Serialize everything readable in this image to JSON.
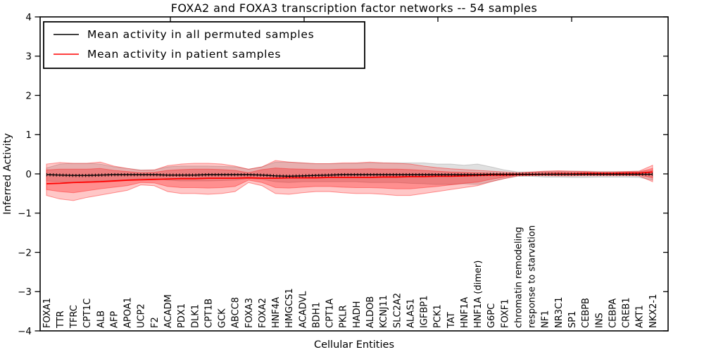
{
  "figure": {
    "title": "FOXA2 and FOXA3 transcription factor networks -- 54 samples",
    "xlabel": "Cellular Entities",
    "ylabel": "Inferred Activity"
  },
  "legend": {
    "items": [
      {
        "label": "Mean activity in all permuted samples",
        "color": "#000000"
      },
      {
        "label": "Mean activity in patient samples",
        "color": "#ff0000"
      }
    ]
  },
  "chart_data": {
    "type": "line",
    "title": "FOXA2 and FOXA3 transcription factor networks -- 54 samples",
    "xlabel": "Cellular Entities",
    "ylabel": "Inferred Activity",
    "ylim": [
      -4,
      4
    ],
    "yticks": [
      -4,
      -3,
      -2,
      -1,
      0,
      1,
      2,
      3,
      4
    ],
    "grid": false,
    "legend_position": "upper left",
    "categories": [
      "FOXA1",
      "TTR",
      "TFRC",
      "CPT1C",
      "ALB",
      "AFP",
      "APOA1",
      "UCP2",
      "F2",
      "ACADM",
      "PDX1",
      "DLK1",
      "CPT1B",
      "GCK",
      "ABCC8",
      "FOXA3",
      "FOXA2",
      "HNF4A",
      "HMGCS1",
      "ACADVL",
      "BDH1",
      "CPT1A",
      "PKLR",
      "HADH",
      "ALDOB",
      "KCNJ11",
      "SLC2A2",
      "ALAS1",
      "IGFBP1",
      "PCK1",
      "TAT",
      "HNF1A",
      "HNF1A (dimer)",
      "G6PC",
      "FOXF1",
      "chromatin remodeling",
      "response to starvation",
      "NF1",
      "NR3C1",
      "SP1",
      "CEBPB",
      "INS",
      "CEBPA",
      "CREB1",
      "AKT1",
      "NKX2-1"
    ],
    "series": [
      {
        "name": "Mean activity in all permuted samples",
        "color": "#000000",
        "values": [
          -0.02,
          -0.03,
          -0.04,
          -0.04,
          -0.03,
          -0.02,
          -0.02,
          -0.02,
          -0.02,
          -0.03,
          -0.03,
          -0.03,
          -0.02,
          -0.02,
          -0.02,
          -0.02,
          -0.03,
          -0.05,
          -0.06,
          -0.05,
          -0.04,
          -0.03,
          -0.02,
          -0.02,
          -0.02,
          -0.02,
          -0.02,
          -0.02,
          -0.02,
          -0.02,
          -0.02,
          -0.02,
          -0.02,
          -0.01,
          -0.01,
          -0.01,
          -0.01,
          -0.01,
          -0.01,
          -0.01,
          -0.01,
          -0.01,
          -0.01,
          -0.01,
          -0.01,
          -0.01
        ]
      },
      {
        "name": "Mean activity in patient samples",
        "color": "#ff0000",
        "values": [
          -0.25,
          -0.24,
          -0.22,
          -0.21,
          -0.2,
          -0.18,
          -0.16,
          -0.15,
          -0.14,
          -0.13,
          -0.12,
          -0.12,
          -0.11,
          -0.11,
          -0.11,
          -0.1,
          -0.11,
          -0.11,
          -0.1,
          -0.1,
          -0.1,
          -0.09,
          -0.09,
          -0.09,
          -0.09,
          -0.08,
          -0.08,
          -0.07,
          -0.07,
          -0.06,
          -0.06,
          -0.05,
          -0.04,
          -0.03,
          -0.03,
          -0.02,
          -0.02,
          -0.01,
          0.0,
          0.0,
          0.01,
          0.01,
          0.01,
          0.02,
          0.02,
          0.05
        ]
      }
    ],
    "bands": [
      {
        "name": "permuted samples range",
        "color": "rgba(0,0,0,0.12)",
        "edge": "rgba(0,0,0,0.16)",
        "upper": [
          0.15,
          0.25,
          0.27,
          0.27,
          0.25,
          0.18,
          0.14,
          0.1,
          0.1,
          0.18,
          0.2,
          0.2,
          0.2,
          0.19,
          0.18,
          0.12,
          0.18,
          0.3,
          0.3,
          0.28,
          0.26,
          0.26,
          0.26,
          0.27,
          0.28,
          0.28,
          0.28,
          0.28,
          0.28,
          0.25,
          0.25,
          0.22,
          0.25,
          0.18,
          0.1,
          0.05,
          0.05,
          0.06,
          0.06,
          0.07,
          0.07,
          0.06,
          0.06,
          0.06,
          0.07,
          0.08
        ],
        "lower": [
          -0.18,
          -0.2,
          -0.22,
          -0.2,
          -0.18,
          -0.16,
          -0.15,
          -0.12,
          -0.12,
          -0.16,
          -0.18,
          -0.18,
          -0.18,
          -0.17,
          -0.16,
          -0.12,
          -0.14,
          -0.2,
          -0.22,
          -0.2,
          -0.2,
          -0.2,
          -0.2,
          -0.2,
          -0.22,
          -0.22,
          -0.22,
          -0.24,
          -0.25,
          -0.27,
          -0.27,
          -0.25,
          -0.27,
          -0.2,
          -0.12,
          -0.06,
          -0.06,
          -0.08,
          -0.08,
          -0.09,
          -0.09,
          -0.08,
          -0.08,
          -0.08,
          -0.09,
          -0.16
        ]
      },
      {
        "name": "patient samples outer range",
        "color": "rgba(255,0,0,0.22)",
        "edge": "rgba(255,0,0,0.40)",
        "upper": [
          0.25,
          0.29,
          0.27,
          0.27,
          0.3,
          0.2,
          0.14,
          0.09,
          0.1,
          0.21,
          0.25,
          0.27,
          0.27,
          0.25,
          0.2,
          0.12,
          0.18,
          0.34,
          0.3,
          0.28,
          0.26,
          0.26,
          0.28,
          0.28,
          0.3,
          0.28,
          0.27,
          0.25,
          0.2,
          0.16,
          0.13,
          0.11,
          0.09,
          0.07,
          0.05,
          0.03,
          0.05,
          0.07,
          0.08,
          0.07,
          0.06,
          0.05,
          0.05,
          0.06,
          0.07,
          0.22
        ],
        "lower": [
          -0.55,
          -0.64,
          -0.68,
          -0.6,
          -0.54,
          -0.48,
          -0.42,
          -0.28,
          -0.3,
          -0.45,
          -0.5,
          -0.5,
          -0.52,
          -0.5,
          -0.45,
          -0.22,
          -0.3,
          -0.5,
          -0.52,
          -0.48,
          -0.45,
          -0.45,
          -0.48,
          -0.5,
          -0.5,
          -0.52,
          -0.55,
          -0.55,
          -0.5,
          -0.45,
          -0.4,
          -0.35,
          -0.3,
          -0.2,
          -0.12,
          -0.05,
          -0.04,
          -0.04,
          -0.05,
          -0.05,
          -0.04,
          -0.04,
          -0.04,
          -0.04,
          -0.05,
          -0.2
        ]
      },
      {
        "name": "patient samples inner range",
        "color": "rgba(255,0,0,0.28)",
        "edge": "rgba(255,0,0,0.35)",
        "upper": [
          0.1,
          0.12,
          0.12,
          0.12,
          0.14,
          0.09,
          0.06,
          0.03,
          0.04,
          0.09,
          0.11,
          0.12,
          0.12,
          0.11,
          0.09,
          0.03,
          0.11,
          0.15,
          0.13,
          0.12,
          0.11,
          0.11,
          0.12,
          0.12,
          0.13,
          0.12,
          0.12,
          0.11,
          0.09,
          0.07,
          0.05,
          0.04,
          0.03,
          0.02,
          0.01,
          0.01,
          0.03,
          0.04,
          0.05,
          0.04,
          0.04,
          0.03,
          0.03,
          0.04,
          0.05,
          0.14
        ],
        "lower": [
          -0.4,
          -0.45,
          -0.48,
          -0.43,
          -0.38,
          -0.34,
          -0.3,
          -0.22,
          -0.23,
          -0.32,
          -0.35,
          -0.35,
          -0.36,
          -0.35,
          -0.32,
          -0.16,
          -0.22,
          -0.35,
          -0.36,
          -0.34,
          -0.32,
          -0.32,
          -0.34,
          -0.35,
          -0.35,
          -0.36,
          -0.38,
          -0.38,
          -0.35,
          -0.32,
          -0.28,
          -0.24,
          -0.21,
          -0.14,
          -0.08,
          -0.03,
          -0.03,
          -0.03,
          -0.03,
          -0.03,
          -0.03,
          -0.03,
          -0.03,
          -0.03,
          -0.03,
          -0.1
        ]
      }
    ]
  }
}
